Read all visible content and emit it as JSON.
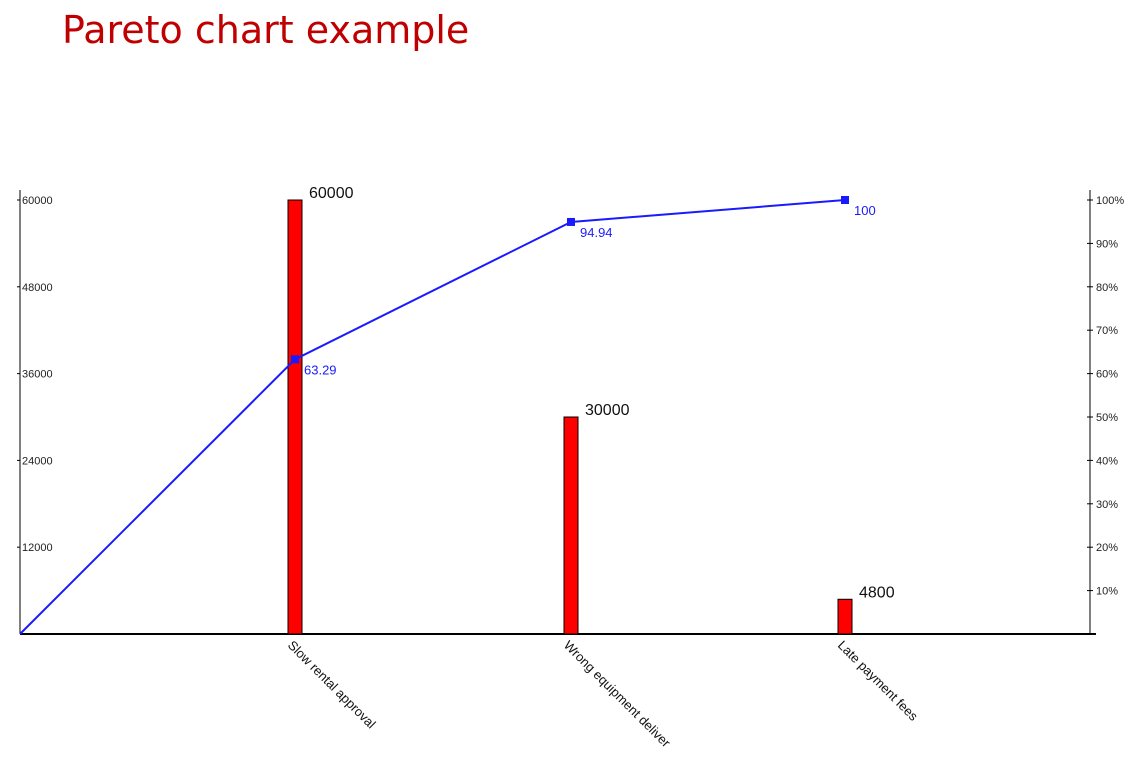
{
  "page": {
    "title": "Pareto chart example"
  },
  "colors": {
    "title": "#c00000",
    "bar": "#ff0000",
    "bar_border": "#000000",
    "line": "#1a1aff",
    "axis": "#000000"
  },
  "chart_data": {
    "type": "bar",
    "title": "",
    "xlabel": "",
    "ylabel": "",
    "categories": [
      "Slow rental approval",
      "Wrong equipment deliver",
      "Late payment fees"
    ],
    "series": [
      {
        "values": [
          60000,
          30000,
          4800
        ]
      },
      {
        "values": [
          63.29,
          94.94,
          100
        ],
        "type": "line",
        "axis": "right"
      }
    ],
    "line_start": 0,
    "ylim": [
      0,
      60000
    ],
    "yticks": [
      12000,
      24000,
      36000,
      48000,
      60000
    ],
    "ylim_right": [
      0,
      100
    ],
    "yticks_right": [
      "10%",
      "20%",
      "30%",
      "40%",
      "50%",
      "60%",
      "70%",
      "80%",
      "90%",
      "100%"
    ],
    "grid": false,
    "legend": "none"
  }
}
